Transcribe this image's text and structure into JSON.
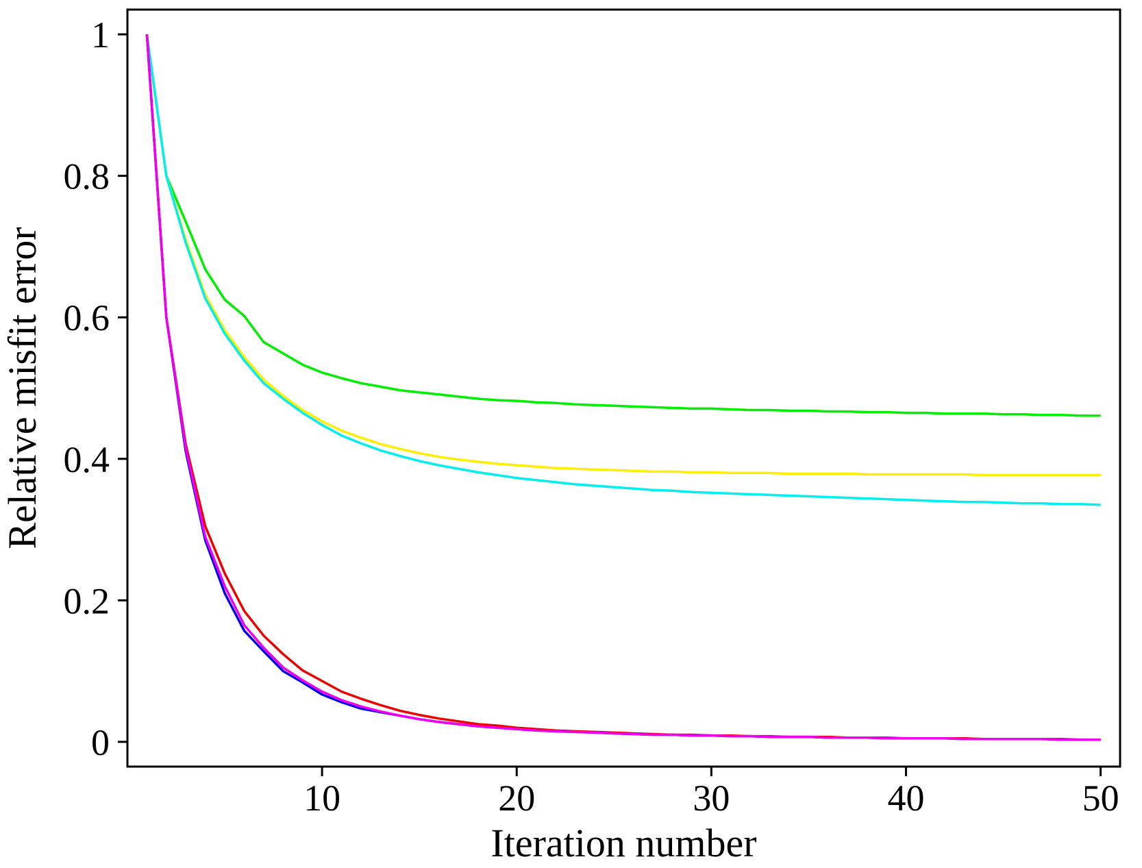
{
  "chart_data": {
    "type": "line",
    "xlabel": "Iteration number",
    "ylabel": "Relative misfit error",
    "xlim": [
      0,
      51
    ],
    "ylim": [
      -0.035,
      1.035
    ],
    "xticks": [
      10,
      20,
      30,
      40,
      50
    ],
    "yticks": [
      0,
      0.2,
      0.4,
      0.6,
      0.8,
      1
    ],
    "ytick_labels": [
      "0",
      "0.2",
      "0.4",
      "0.6",
      "0.8",
      "1"
    ],
    "grid": false,
    "legend": "none",
    "x": [
      1,
      2,
      3,
      4,
      5,
      6,
      7,
      8,
      9,
      10,
      11,
      12,
      13,
      14,
      15,
      16,
      17,
      18,
      19,
      20,
      21,
      22,
      23,
      24,
      25,
      26,
      27,
      28,
      29,
      30,
      31,
      32,
      33,
      34,
      35,
      36,
      37,
      38,
      39,
      40,
      41,
      42,
      43,
      44,
      45,
      46,
      47,
      48,
      49,
      50
    ],
    "series": [
      {
        "color": "#00ee00",
        "values": [
          1.0,
          0.8,
          0.735,
          0.668,
          0.625,
          0.602,
          0.565,
          0.549,
          0.533,
          0.522,
          0.514,
          0.507,
          0.502,
          0.497,
          0.494,
          0.491,
          0.488,
          0.485,
          0.483,
          0.482,
          0.48,
          0.479,
          0.477,
          0.476,
          0.475,
          0.474,
          0.473,
          0.472,
          0.471,
          0.471,
          0.47,
          0.469,
          0.469,
          0.468,
          0.468,
          0.467,
          0.467,
          0.466,
          0.466,
          0.465,
          0.465,
          0.464,
          0.464,
          0.464,
          0.463,
          0.463,
          0.462,
          0.462,
          0.461,
          0.461
        ]
      },
      {
        "color": "#ffee00",
        "values": [
          1.0,
          0.8,
          0.71,
          0.632,
          0.582,
          0.544,
          0.512,
          0.489,
          0.469,
          0.453,
          0.44,
          0.43,
          0.421,
          0.414,
          0.408,
          0.403,
          0.399,
          0.396,
          0.393,
          0.391,
          0.389,
          0.387,
          0.386,
          0.385,
          0.384,
          0.383,
          0.382,
          0.382,
          0.381,
          0.381,
          0.38,
          0.38,
          0.38,
          0.379,
          0.379,
          0.379,
          0.379,
          0.378,
          0.378,
          0.378,
          0.378,
          0.378,
          0.378,
          0.377,
          0.377,
          0.377,
          0.377,
          0.377,
          0.377,
          0.377
        ]
      },
      {
        "color": "#00eeee",
        "values": [
          1.0,
          0.8,
          0.705,
          0.627,
          0.577,
          0.539,
          0.507,
          0.485,
          0.465,
          0.448,
          0.433,
          0.422,
          0.412,
          0.404,
          0.397,
          0.391,
          0.386,
          0.381,
          0.377,
          0.373,
          0.37,
          0.367,
          0.364,
          0.362,
          0.36,
          0.358,
          0.356,
          0.355,
          0.353,
          0.352,
          0.351,
          0.35,
          0.349,
          0.348,
          0.347,
          0.346,
          0.345,
          0.344,
          0.343,
          0.342,
          0.341,
          0.34,
          0.339,
          0.339,
          0.338,
          0.337,
          0.337,
          0.336,
          0.336,
          0.335
        ]
      },
      {
        "color": "#0000ee",
        "values": [
          1.0,
          0.6,
          0.41,
          0.285,
          0.21,
          0.157,
          0.128,
          0.1,
          0.084,
          0.067,
          0.056,
          0.047,
          0.042,
          0.037,
          0.032,
          0.028,
          0.025,
          0.022,
          0.02,
          0.018,
          0.016,
          0.015,
          0.014,
          0.013,
          0.012,
          0.011,
          0.01,
          0.01,
          0.009,
          0.009,
          0.008,
          0.008,
          0.007,
          0.007,
          0.007,
          0.006,
          0.006,
          0.006,
          0.005,
          0.005,
          0.005,
          0.005,
          0.004,
          0.004,
          0.004,
          0.004,
          0.004,
          0.003,
          0.003,
          0.003
        ]
      },
      {
        "color": "#ee0000",
        "values": [
          1.0,
          0.6,
          0.42,
          0.305,
          0.238,
          0.185,
          0.15,
          0.124,
          0.101,
          0.086,
          0.071,
          0.061,
          0.052,
          0.044,
          0.038,
          0.033,
          0.029,
          0.025,
          0.023,
          0.02,
          0.018,
          0.016,
          0.015,
          0.014,
          0.013,
          0.012,
          0.011,
          0.01,
          0.01,
          0.009,
          0.009,
          0.008,
          0.008,
          0.007,
          0.007,
          0.007,
          0.006,
          0.006,
          0.006,
          0.005,
          0.005,
          0.005,
          0.005,
          0.004,
          0.004,
          0.004,
          0.004,
          0.004,
          0.003,
          0.003
        ]
      },
      {
        "color": "#ee00ee",
        "values": [
          1.0,
          0.6,
          0.415,
          0.29,
          0.22,
          0.165,
          0.133,
          0.105,
          0.087,
          0.071,
          0.059,
          0.05,
          0.043,
          0.037,
          0.032,
          0.028,
          0.025,
          0.022,
          0.02,
          0.018,
          0.016,
          0.015,
          0.014,
          0.013,
          0.012,
          0.011,
          0.01,
          0.01,
          0.009,
          0.009,
          0.008,
          0.008,
          0.007,
          0.007,
          0.007,
          0.006,
          0.006,
          0.006,
          0.005,
          0.005,
          0.005,
          0.005,
          0.004,
          0.004,
          0.004,
          0.004,
          0.004,
          0.003,
          0.003,
          0.003
        ]
      }
    ]
  }
}
